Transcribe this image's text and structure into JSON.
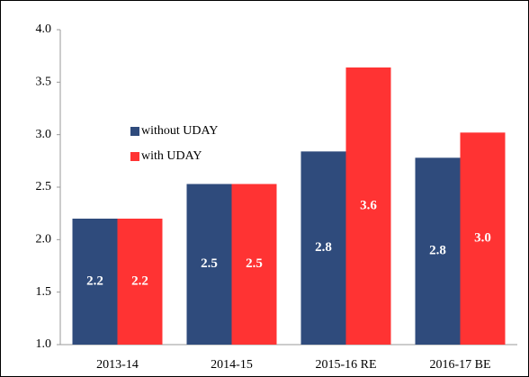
{
  "chart_data": {
    "type": "bar",
    "categories": [
      "2013-14",
      "2014-15",
      "2015-16 RE",
      "2016-17 BE"
    ],
    "series": [
      {
        "name": "without UDAY",
        "color": "#2f4b7c",
        "values": [
          2.2,
          2.53,
          2.84,
          2.78
        ],
        "value_labels": [
          "2.2",
          "2.5",
          "2.8",
          "2.8"
        ]
      },
      {
        "name": "with UDAY",
        "color": "#ff3333",
        "values": [
          2.2,
          2.53,
          3.64,
          3.02
        ],
        "value_labels": [
          "2.2",
          "2.5",
          "3.6",
          "3.0"
        ]
      }
    ],
    "ylim": [
      1.0,
      4.0
    ],
    "yticks": [
      {
        "value": 1,
        "label": "1.0"
      },
      1.5,
      {
        "value": 2,
        "label": "2.0"
      },
      2.5,
      {
        "value": 3,
        "label": "3.0"
      },
      3.5,
      {
        "value": 4,
        "label": "4.0"
      }
    ],
    "grid": false
  }
}
